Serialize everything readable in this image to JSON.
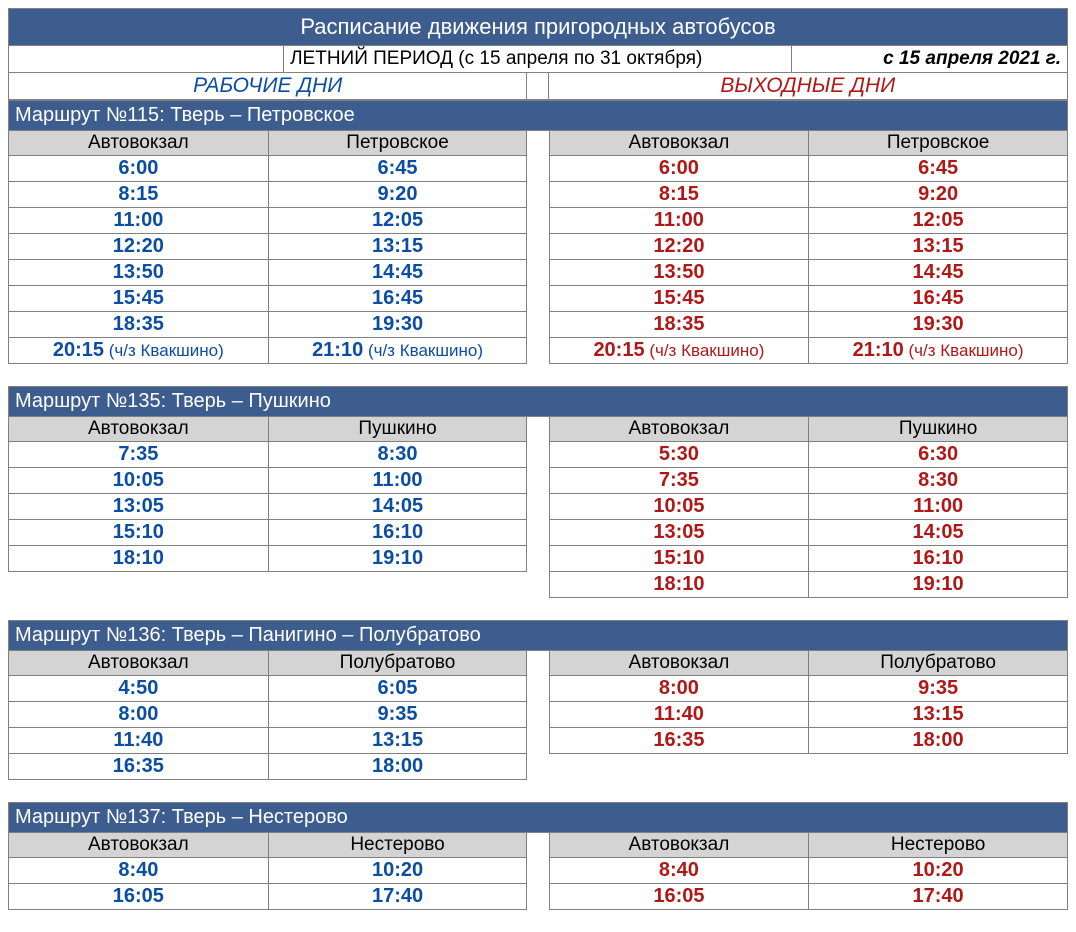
{
  "colors": {
    "header_bg": "#3d5d8f",
    "header_fg": "#ffffff",
    "col_header_bg": "#d4d4d4",
    "border": "#808080",
    "workday_text": "#0b4da2",
    "weekend_text": "#b01818",
    "black": "#000000"
  },
  "main_title": "Расписание движения пригородных автобусов",
  "period_text": "ЛЕТНИЙ ПЕРИОД (с 15 апреля по 31 октября)",
  "effective_from": "с 15 апреля 2021 г.",
  "workdays_label": "РАБОЧИЕ ДНИ",
  "weekends_label": "ВЫХОДНЫЕ ДНИ",
  "routes": [
    {
      "title": "Маршрут №115: Тверь – Петровское",
      "gapped": false,
      "col1": "Автовокзал",
      "col2": "Петровское",
      "col3": "Автовокзал",
      "col4": "Петровское",
      "rows": [
        {
          "w1": "6:00",
          "w2": "6:45",
          "k1": "6:00",
          "k2": "6:45"
        },
        {
          "w1": "8:15",
          "w2": "9:20",
          "k1": "8:15",
          "k2": "9:20"
        },
        {
          "w1": "11:00",
          "w2": "12:05",
          "k1": "11:00",
          "k2": "12:05"
        },
        {
          "w1": "12:20",
          "w2": "13:15",
          "k1": "12:20",
          "k2": "13:15"
        },
        {
          "w1": "13:50",
          "w2": "14:45",
          "k1": "13:50",
          "k2": "14:45"
        },
        {
          "w1": "15:45",
          "w2": "16:45",
          "k1": "15:45",
          "k2": "16:45"
        },
        {
          "w1": "18:35",
          "w2": "19:30",
          "k1": "18:35",
          "k2": "19:30"
        },
        {
          "w1": "20:15",
          "w1n": " (ч/з Квакшино)",
          "w2": "21:10",
          "w2n": " (ч/з Квакшино)",
          "k1": "20:15",
          "k1n": " (ч/з Квакшино)",
          "k2": "21:10",
          "k2n": " (ч/з Квакшино)"
        }
      ]
    },
    {
      "title": "Маршрут №135: Тверь – Пушкино",
      "gapped": true,
      "col1": "Автовокзал",
      "col2": "Пушкино",
      "col3": "Автовокзал",
      "col4": "Пушкино",
      "rows": [
        {
          "w1": "7:35",
          "w2": "8:30",
          "k1": "5:30",
          "k2": "6:30"
        },
        {
          "w1": "10:05",
          "w2": "11:00",
          "k1": "7:35",
          "k2": "8:30"
        },
        {
          "w1": "13:05",
          "w2": "14:05",
          "k1": "10:05",
          "k2": "11:00"
        },
        {
          "w1": "15:10",
          "w2": "16:10",
          "k1": "13:05",
          "k2": "14:05"
        },
        {
          "w1": "18:10",
          "w2": "19:10",
          "k1": "15:10",
          "k2": "16:10"
        },
        {
          "w1": "",
          "w2": "",
          "k1": "18:10",
          "k2": "19:10",
          "work_empty": true
        }
      ]
    },
    {
      "title": "Маршрут №136: Тверь – Панигино – Полубратово",
      "gapped": true,
      "col1": "Автовокзал",
      "col2": "Полубратово",
      "col3": "Автовокзал",
      "col4": "Полубратово",
      "rows": [
        {
          "w1": "4:50",
          "w2": "6:05",
          "k1": "8:00",
          "k2": "9:35"
        },
        {
          "w1": "8:00",
          "w2": "9:35",
          "k1": "11:40",
          "k2": "13:15"
        },
        {
          "w1": "11:40",
          "w2": "13:15",
          "k1": "16:35",
          "k2": "18:00"
        },
        {
          "w1": "16:35",
          "w2": "18:00",
          "k1": "",
          "k2": "",
          "wknd_empty": true
        }
      ]
    },
    {
      "title": "Маршрут №137: Тверь – Нестерово",
      "gapped": true,
      "col1": "Автовокзал",
      "col2": "Нестерово",
      "col3": "Автовокзал",
      "col4": "Нестерово",
      "rows": [
        {
          "w1": "8:40",
          "w2": "10:20",
          "k1": "8:40",
          "k2": "10:20"
        },
        {
          "w1": "16:05",
          "w2": "17:40",
          "k1": "16:05",
          "k2": "17:40"
        }
      ]
    }
  ]
}
